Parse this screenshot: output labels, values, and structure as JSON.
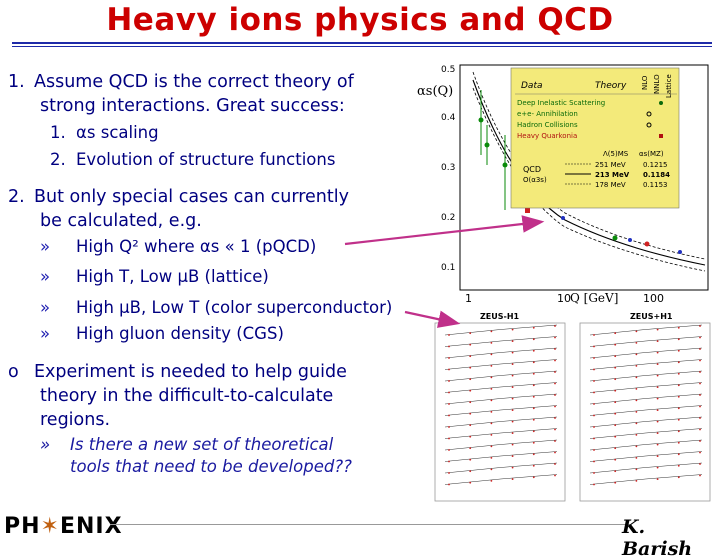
{
  "slide": {
    "title": "Heavy ions physics and QCD",
    "items": [
      {
        "num": "1.",
        "line1": "Assume QCD is the correct theory of",
        "line2": "strong interactions. Great success:"
      },
      {
        "num": "2.",
        "line1": "But only special cases can currently",
        "line2": "be calculated, e.g."
      }
    ],
    "sub1": [
      {
        "num": "1.",
        "text": "αs scaling"
      },
      {
        "num": "2.",
        "text": "Evolution of structure functions"
      }
    ],
    "sub2": [
      {
        "bullet": "»",
        "text": "High Q² where αs « 1 (pQCD)"
      },
      {
        "bullet": "»",
        "text": "High T, Low μB (lattice)"
      },
      {
        "bullet": "»",
        "text": "High μB, Low T (color superconductor)"
      },
      {
        "bullet": "»",
        "text": "High gluon density (CGS)"
      }
    ],
    "experiment": {
      "bullet": "o",
      "line1": "Experiment is needed to help guide",
      "line2": "theory in the difficult-to-calculate",
      "line3": "regions."
    },
    "question": {
      "bullet": "»",
      "line1": "Is there a new set of theoretical",
      "line2": "tools that need to be developed??"
    },
    "footer": {
      "logo_left": "PH",
      "logo_right": "ENIX",
      "author": "K. Barish"
    }
  },
  "plot_alpha": {
    "ylabel": "αs(Q)",
    "xlabel": "Q [GeV]",
    "y_ticks": [
      "0.5",
      "0.4",
      "0.3",
      "0.2",
      "0.1"
    ],
    "x_ticks": [
      "1",
      "10",
      "100"
    ],
    "legend": {
      "head_data": "Data",
      "head_theory": "Theory",
      "col_nlo": "NLO",
      "col_nnlo": "NNLO",
      "col_lattice": "Lattice",
      "rows": [
        "Deep Inelastic Scattering",
        "e+e- Annihilation",
        "Hadron Collisions",
        "Heavy Quarkonia"
      ],
      "lambda_head": "Λ(5)MS",
      "alpha_head": "αs(MZ)",
      "qcd_label": "QCD",
      "order_label": "O(α3s)",
      "lambdas": [
        "251 MeV",
        "213 MeV",
        "178 MeV"
      ],
      "alphas": [
        "0.1215",
        "0.1184",
        "0.1153"
      ]
    }
  },
  "plot_zeus": {
    "left_label": "ZEUS-H1",
    "right_label": "ZEUS+H1"
  },
  "colors": {
    "title": "#cc0000",
    "rule": "#1f2aa8",
    "text": "#000080",
    "arrow": "#c0308a",
    "legend_bg": "#f3ea7a"
  }
}
